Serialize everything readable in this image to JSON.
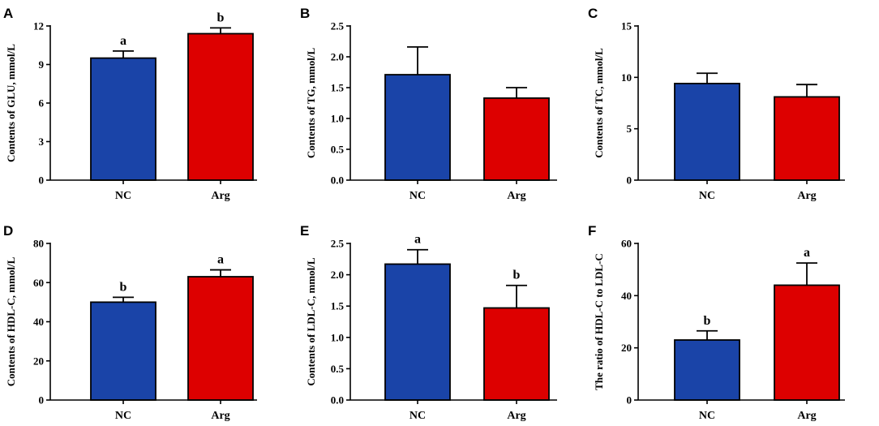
{
  "colors": {
    "NC": "#1a44a8",
    "Arg": "#dd0000"
  },
  "chart_data": [
    {
      "panel": "A",
      "type": "bar",
      "categories": [
        "NC",
        "Arg"
      ],
      "values": [
        9.5,
        11.4
      ],
      "errors": [
        0.55,
        0.45
      ],
      "sig": [
        "a",
        "b"
      ],
      "ylabel": "Contents of GLU, mmol/L",
      "ylim": [
        0,
        12
      ],
      "ticks": [
        0,
        3,
        6,
        9,
        12
      ],
      "tick_labels": [
        "0",
        "3",
        "6",
        "9",
        "12"
      ]
    },
    {
      "panel": "B",
      "type": "bar",
      "categories": [
        "NC",
        "Arg"
      ],
      "values": [
        1.71,
        1.33
      ],
      "errors": [
        0.45,
        0.17
      ],
      "sig": [
        "",
        ""
      ],
      "ylabel": "Contents of TG, mmol/L",
      "ylim": [
        0,
        2.5
      ],
      "ticks": [
        0,
        0.5,
        1.0,
        1.5,
        2.0,
        2.5
      ],
      "tick_labels": [
        "0.0",
        "0.5",
        "1.0",
        "1.5",
        "2.0",
        "2.5"
      ]
    },
    {
      "panel": "C",
      "type": "bar",
      "categories": [
        "NC",
        "Arg"
      ],
      "values": [
        9.4,
        8.1
      ],
      "errors": [
        1.0,
        1.2
      ],
      "sig": [
        "",
        ""
      ],
      "ylabel": "Contents of TC, mmol/L",
      "ylim": [
        0,
        15
      ],
      "ticks": [
        0,
        5,
        10,
        15
      ],
      "tick_labels": [
        "0",
        "5",
        "10",
        "15"
      ]
    },
    {
      "panel": "D",
      "type": "bar",
      "categories": [
        "NC",
        "Arg"
      ],
      "values": [
        50,
        63
      ],
      "errors": [
        2.5,
        3.5
      ],
      "sig": [
        "b",
        "a"
      ],
      "ylabel": "Contents of HDL-C, mmol/L",
      "ylim": [
        0,
        80
      ],
      "ticks": [
        0,
        20,
        40,
        60,
        80
      ],
      "tick_labels": [
        "0",
        "20",
        "40",
        "60",
        "80"
      ]
    },
    {
      "panel": "E",
      "type": "bar",
      "categories": [
        "NC",
        "Arg"
      ],
      "values": [
        2.17,
        1.47
      ],
      "errors": [
        0.23,
        0.36
      ],
      "sig": [
        "a",
        "b"
      ],
      "ylabel": "Contents of LDL-C, mmol/L",
      "ylim": [
        0,
        2.5
      ],
      "ticks": [
        0,
        0.5,
        1.0,
        1.5,
        2.0,
        2.5
      ],
      "tick_labels": [
        "0.0",
        "0.5",
        "1.0",
        "1.5",
        "2.0",
        "2.5"
      ]
    },
    {
      "panel": "F",
      "type": "bar",
      "categories": [
        "NC",
        "Arg"
      ],
      "values": [
        23,
        44
      ],
      "errors": [
        3.5,
        8.5
      ],
      "sig": [
        "b",
        "a"
      ],
      "ylabel": "The ratio of HDL-C to  LDL-C",
      "ylim": [
        0,
        60
      ],
      "ticks": [
        0,
        20,
        40,
        60
      ],
      "tick_labels": [
        "0",
        "20",
        "40",
        "60"
      ]
    }
  ]
}
